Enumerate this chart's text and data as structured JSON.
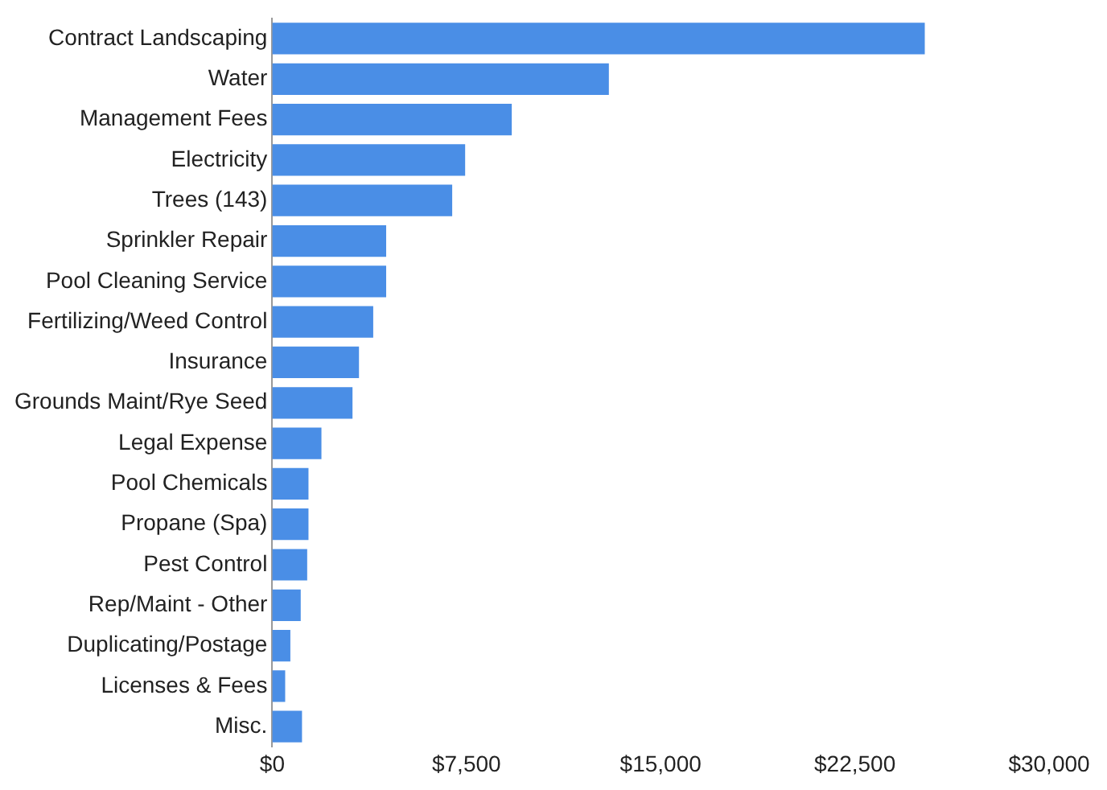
{
  "chart_data": {
    "type": "bar",
    "orientation": "horizontal",
    "categories": [
      "Contract Landscaping",
      "Water",
      "Management Fees",
      "Electricity",
      "Trees (143)",
      "Sprinkler Repair",
      "Pool Cleaning Service",
      "Fertilizing/Weed Control",
      "Insurance",
      "Grounds Maint/Rye Seed",
      "Legal Expense",
      "Pool Chemicals",
      "Propane (Spa)",
      "Pest Control",
      "Rep/Maint - Other",
      "Duplicating/Postage",
      "Licenses & Fees",
      "Misc."
    ],
    "values": [
      25200,
      13000,
      9250,
      7450,
      6950,
      4400,
      4400,
      3900,
      3350,
      3100,
      1900,
      1400,
      1400,
      1350,
      1100,
      700,
      500,
      1150
    ],
    "color": "#4a8ee6",
    "xlim": [
      0,
      30000
    ],
    "xticks": [
      {
        "value": 0,
        "label": "$0"
      },
      {
        "value": 7500,
        "label": "$7,500"
      },
      {
        "value": 15000,
        "label": "$15,000"
      },
      {
        "value": 22500,
        "label": "$22,500"
      },
      {
        "value": 30000,
        "label": "$30,000"
      }
    ],
    "grid": false,
    "legend": false
  }
}
